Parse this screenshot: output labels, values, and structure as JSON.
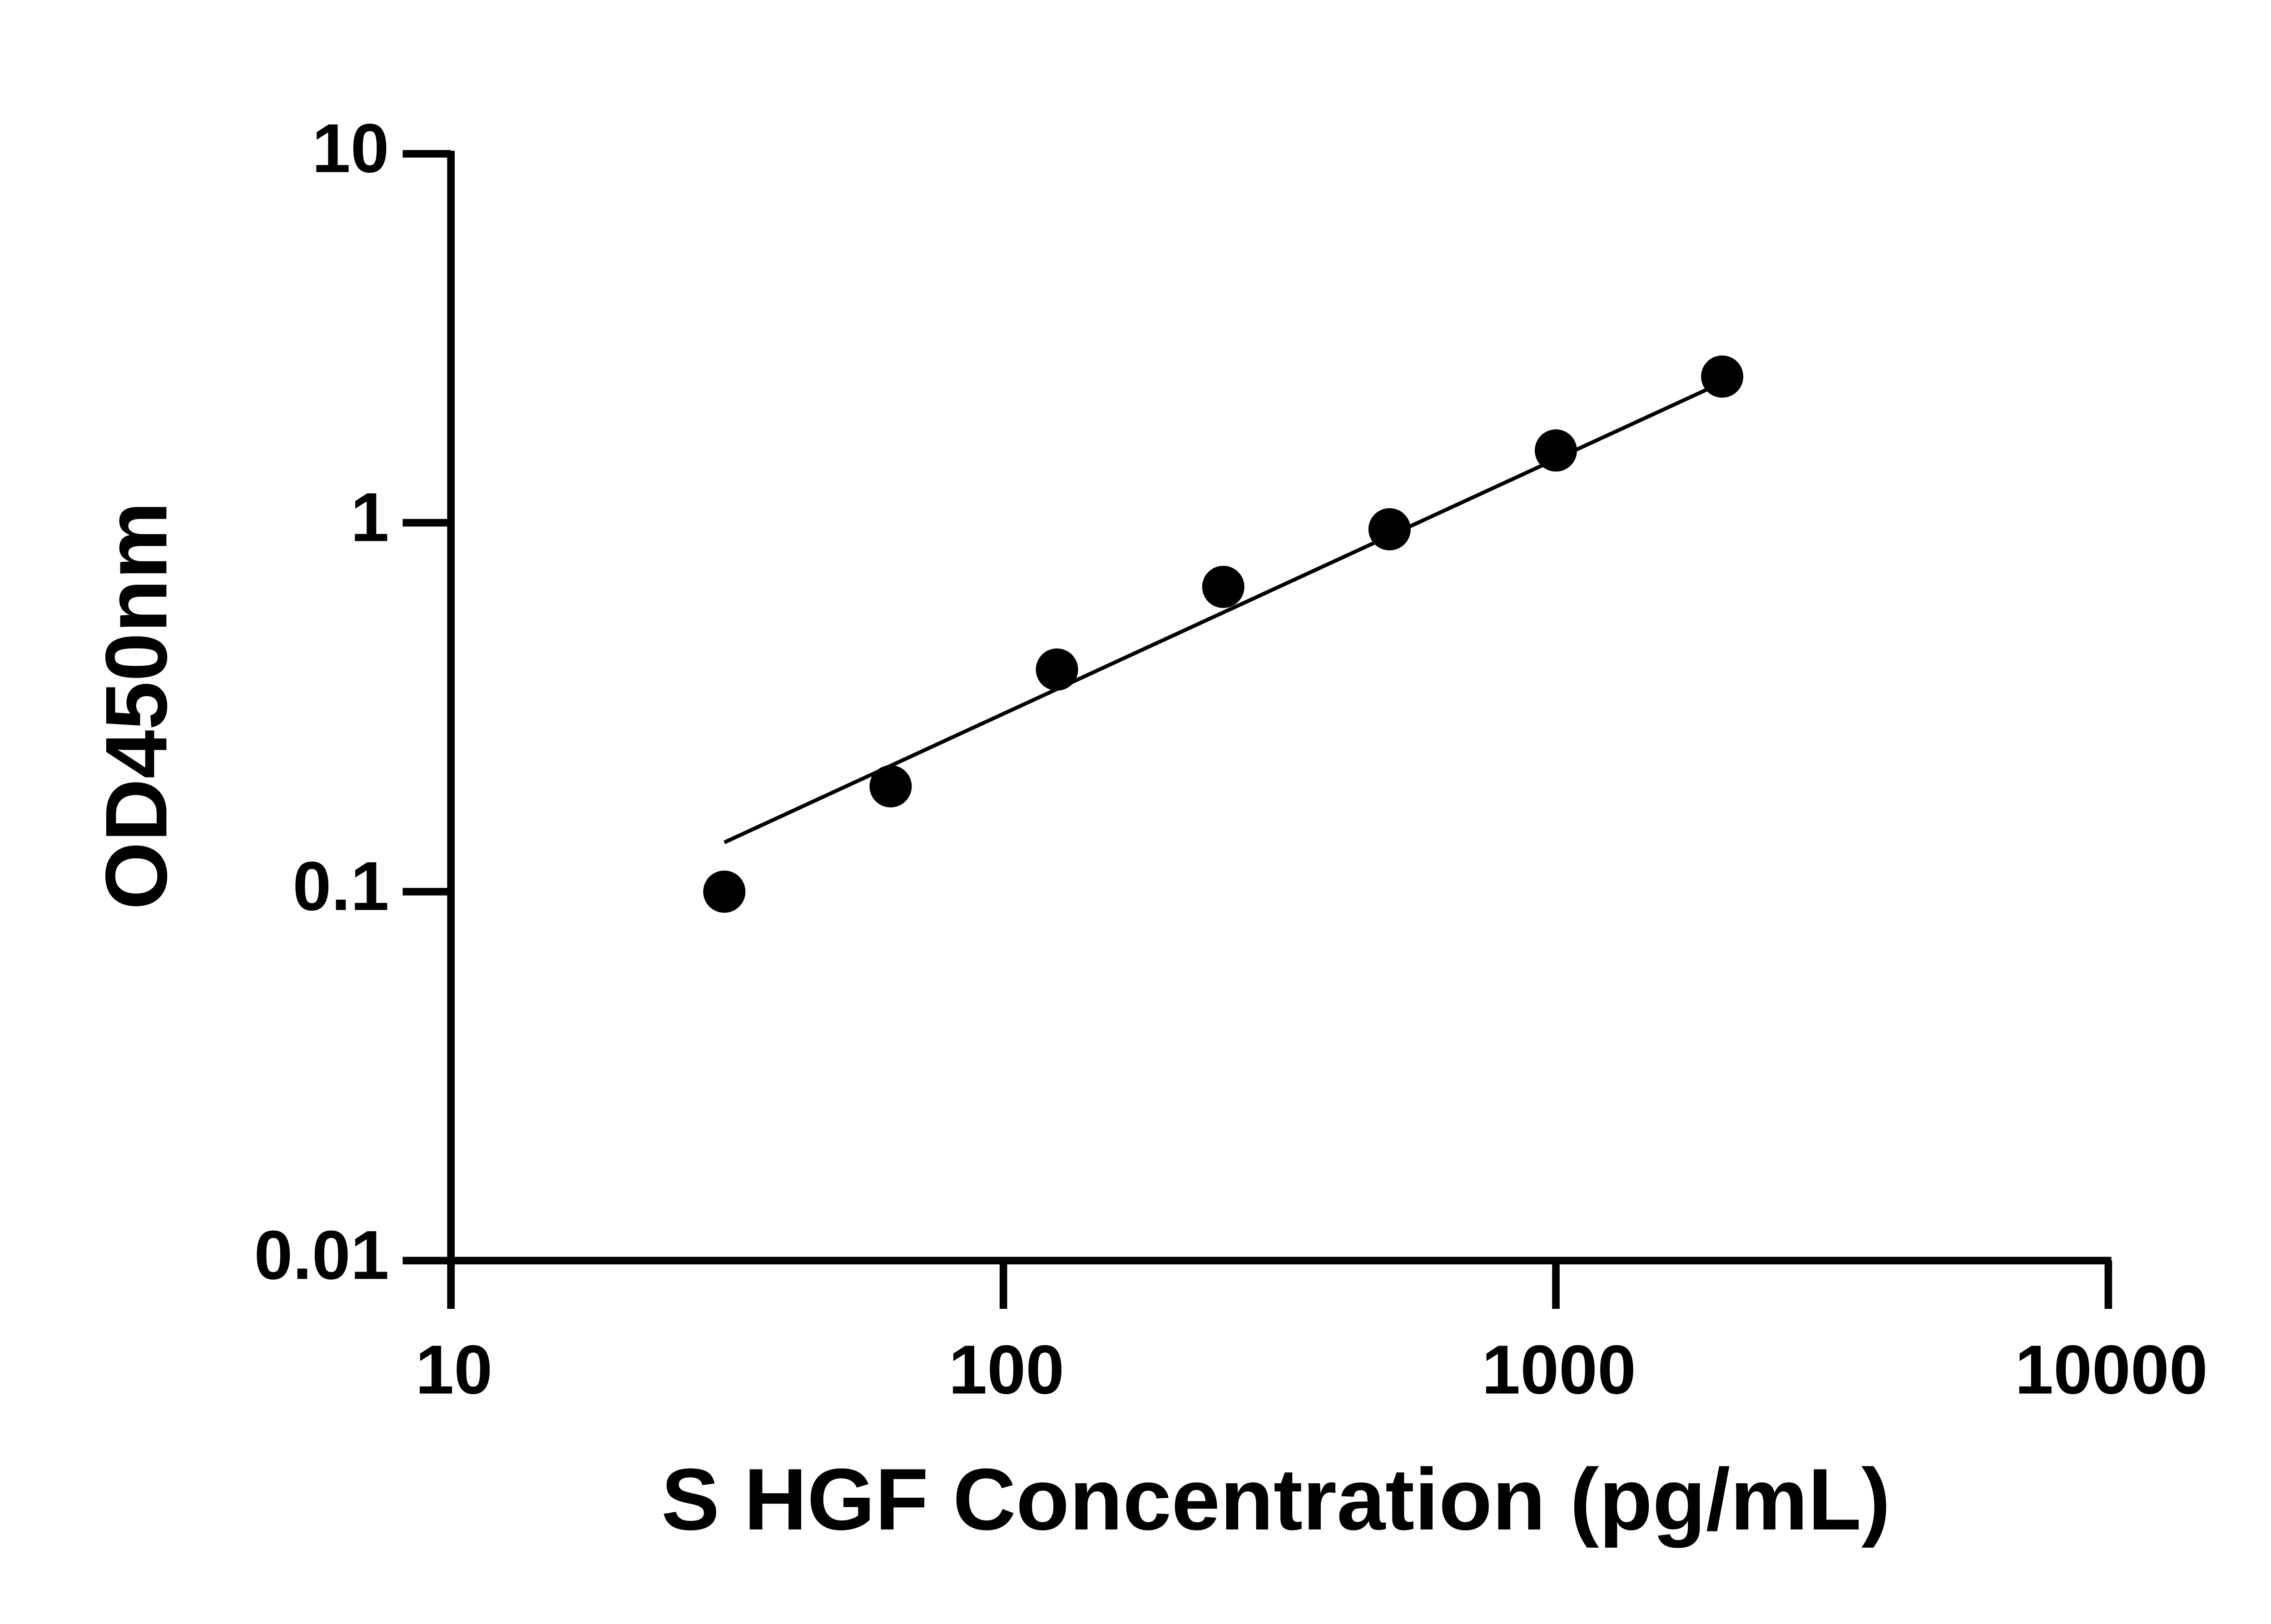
{
  "chart_data": {
    "type": "scatter",
    "x_label": "S HGF Concentration (pg/mL)",
    "y_label": "OD450nm",
    "x": [
      31.25,
      62.5,
      125,
      250,
      500,
      1000,
      2000
    ],
    "values": [
      0.1,
      0.193,
      0.4,
      0.67,
      0.96,
      1.57,
      2.49
    ],
    "fit": {
      "x": [
        31.25,
        2000
      ],
      "values": [
        0.136,
        2.4
      ]
    },
    "color": "#000000",
    "xscale": "log",
    "yscale": "log",
    "xlim": [
      10,
      10000
    ],
    "ylim": [
      0.01,
      10
    ],
    "xticks": [
      10,
      100,
      1000,
      10000
    ],
    "yticks": [
      0.01,
      0.1,
      1,
      10
    ]
  }
}
